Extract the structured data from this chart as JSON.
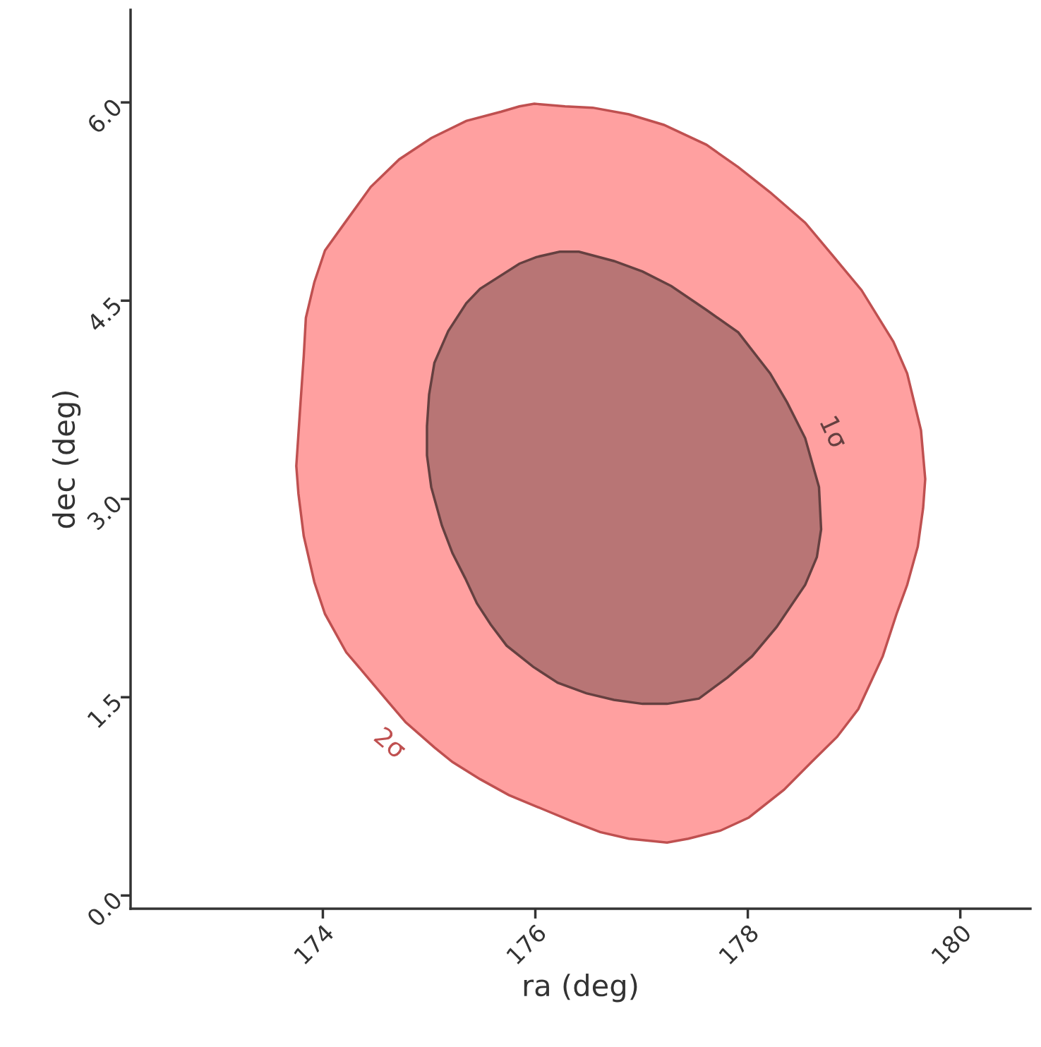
{
  "chart_data": {
    "type": "area",
    "xlabel": "ra (deg)",
    "ylabel": "dec (deg)",
    "xlim": [
      172.19,
      180.66
    ],
    "ylim": [
      -0.1,
      6.7
    ],
    "xticks": [
      174,
      176,
      178,
      180
    ],
    "yticks": [
      {
        "value": 0,
        "label": "0.0"
      },
      {
        "value": 1.5,
        "label": "1.5"
      },
      {
        "value": 3,
        "label": "3.0"
      },
      {
        "value": 4.5,
        "label": "4.5"
      },
      {
        "value": 6,
        "label": "6.0"
      }
    ],
    "grid": false,
    "series": [
      {
        "name": "2σ",
        "color": "#ffa0a0",
        "x": [
          175.99,
          176.28,
          176.54,
          176.88,
          177.21,
          177.61,
          177.91,
          178.21,
          178.54,
          178.8,
          179.07,
          179.37,
          179.5,
          179.63,
          179.67,
          179.65,
          179.6,
          179.5,
          179.4,
          179.27,
          179.04,
          178.84,
          178.6,
          178.34,
          178.01,
          177.74,
          177.44,
          177.24,
          176.88,
          176.61,
          176.35,
          176.08,
          175.75,
          175.48,
          175.22,
          175.05,
          174.78,
          174.62,
          174.39,
          174.22,
          174.02,
          173.92,
          173.82,
          173.77,
          173.75,
          173.79,
          173.82,
          173.84,
          173.92,
          174.02,
          174.19,
          174.45,
          174.72,
          175.02,
          175.35,
          175.68,
          175.85
        ],
        "values": [
          5.99,
          5.97,
          5.96,
          5.91,
          5.83,
          5.68,
          5.51,
          5.32,
          5.09,
          4.84,
          4.58,
          4.19,
          3.95,
          3.52,
          3.15,
          2.93,
          2.64,
          2.35,
          2.13,
          1.81,
          1.41,
          1.2,
          1.01,
          0.8,
          0.59,
          0.49,
          0.43,
          0.4,
          0.43,
          0.48,
          0.56,
          0.65,
          0.76,
          0.88,
          1.01,
          1.12,
          1.31,
          1.46,
          1.68,
          1.84,
          2.13,
          2.37,
          2.72,
          3.04,
          3.25,
          3.73,
          4.08,
          4.37,
          4.64,
          4.88,
          5.07,
          5.36,
          5.57,
          5.73,
          5.86,
          5.93,
          5.97
        ]
      },
      {
        "name": "1σ",
        "color": "#b87575",
        "x": [
          176.23,
          176.41,
          176.74,
          177.01,
          177.28,
          177.61,
          177.91,
          178.21,
          178.37,
          178.54,
          178.67,
          178.69,
          178.65,
          178.54,
          178.27,
          178.04,
          177.81,
          177.54,
          177.24,
          177.01,
          176.74,
          176.48,
          176.21,
          175.98,
          175.73,
          175.58,
          175.45,
          175.34,
          175.22,
          175.12,
          175.02,
          174.98,
          174.98,
          175.0,
          175.05,
          175.18,
          175.35,
          175.48,
          175.85,
          176.01
        ],
        "values": [
          4.87,
          4.87,
          4.8,
          4.72,
          4.61,
          4.43,
          4.26,
          3.95,
          3.73,
          3.46,
          3.09,
          2.77,
          2.56,
          2.35,
          2.03,
          1.81,
          1.65,
          1.49,
          1.45,
          1.45,
          1.48,
          1.53,
          1.61,
          1.73,
          1.89,
          2.05,
          2.21,
          2.4,
          2.59,
          2.8,
          3.09,
          3.33,
          3.55,
          3.79,
          4.03,
          4.27,
          4.48,
          4.59,
          4.78,
          4.83
        ]
      }
    ]
  }
}
